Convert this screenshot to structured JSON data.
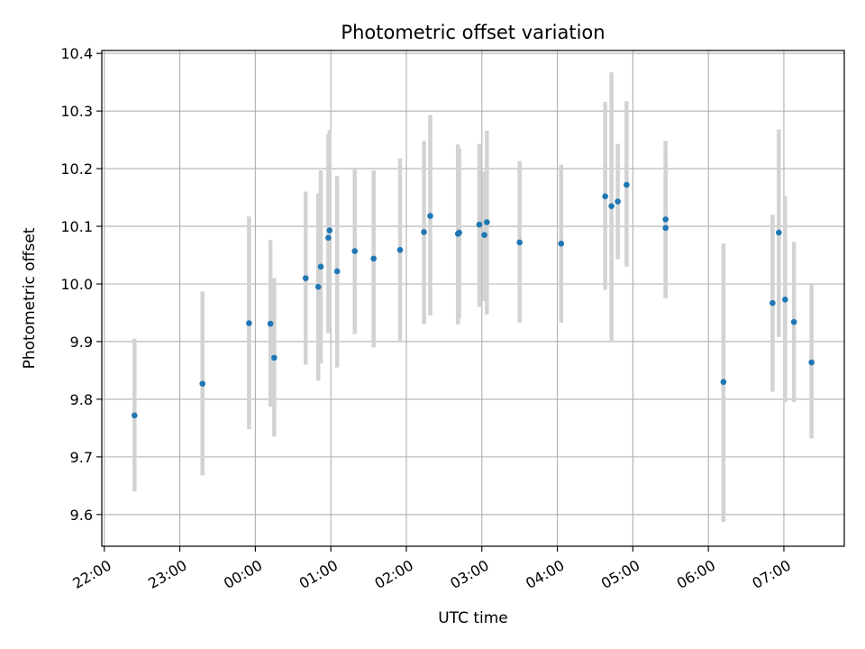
{
  "chart_data": {
    "type": "scatter",
    "title": "Photometric offset variation",
    "xlabel": "UTC time",
    "ylabel": "Photometric offset",
    "x_axis_type": "time",
    "xlim": [
      "21:58",
      "07:48"
    ],
    "ylim": [
      9.545,
      10.405
    ],
    "x_ticks": [
      "22:00",
      "23:00",
      "00:00",
      "01:00",
      "02:00",
      "03:00",
      "04:00",
      "05:00",
      "06:00",
      "07:00"
    ],
    "y_ticks": [
      "9.6",
      "9.7",
      "9.8",
      "9.9",
      "10.0",
      "10.1",
      "10.2",
      "10.3",
      "10.4"
    ],
    "grid": true,
    "marker_color": "#1f77b4",
    "errorbar_color": "#d3d3d3",
    "points": [
      {
        "x": "22:24",
        "y": 9.772,
        "ylow": 9.64,
        "yhigh": 9.905
      },
      {
        "x": "23:18",
        "y": 9.827,
        "ylow": 9.668,
        "yhigh": 9.987
      },
      {
        "x": "23:55",
        "y": 9.932,
        "ylow": 9.748,
        "yhigh": 10.117
      },
      {
        "x": "00:12",
        "y": 9.931,
        "ylow": 9.787,
        "yhigh": 10.076
      },
      {
        "x": "00:15",
        "y": 9.872,
        "ylow": 9.735,
        "yhigh": 10.01
      },
      {
        "x": "00:40",
        "y": 10.01,
        "ylow": 9.86,
        "yhigh": 10.16
      },
      {
        "x": "00:50",
        "y": 9.995,
        "ylow": 9.832,
        "yhigh": 10.157
      },
      {
        "x": "00:52",
        "y": 10.03,
        "ylow": 9.862,
        "yhigh": 10.197
      },
      {
        "x": "00:58",
        "y": 10.08,
        "ylow": 9.915,
        "yhigh": 10.26
      },
      {
        "x": "00:59",
        "y": 10.093,
        "ylow": 9.925,
        "yhigh": 10.267
      },
      {
        "x": "01:05",
        "y": 10.022,
        "ylow": 9.855,
        "yhigh": 10.187
      },
      {
        "x": "01:19",
        "y": 10.057,
        "ylow": 9.913,
        "yhigh": 10.2
      },
      {
        "x": "01:34",
        "y": 10.044,
        "ylow": 9.89,
        "yhigh": 10.197
      },
      {
        "x": "01:55",
        "y": 10.059,
        "ylow": 9.9,
        "yhigh": 10.218
      },
      {
        "x": "02:14",
        "y": 10.09,
        "ylow": 9.93,
        "yhigh": 10.248
      },
      {
        "x": "02:19",
        "y": 10.118,
        "ylow": 9.945,
        "yhigh": 10.293
      },
      {
        "x": "02:41",
        "y": 10.087,
        "ylow": 9.93,
        "yhigh": 10.242
      },
      {
        "x": "02:42",
        "y": 10.089,
        "ylow": 9.94,
        "yhigh": 10.235
      },
      {
        "x": "02:58",
        "y": 10.103,
        "ylow": 9.96,
        "yhigh": 10.243
      },
      {
        "x": "03:02",
        "y": 10.085,
        "ylow": 9.97,
        "yhigh": 10.195
      },
      {
        "x": "03:04",
        "y": 10.107,
        "ylow": 9.947,
        "yhigh": 10.266
      },
      {
        "x": "03:30",
        "y": 10.072,
        "ylow": 9.933,
        "yhigh": 10.213
      },
      {
        "x": "04:03",
        "y": 10.07,
        "ylow": 9.933,
        "yhigh": 10.207
      },
      {
        "x": "04:38",
        "y": 10.152,
        "ylow": 9.99,
        "yhigh": 10.316
      },
      {
        "x": "04:43",
        "y": 10.135,
        "ylow": 9.9,
        "yhigh": 10.367
      },
      {
        "x": "04:48",
        "y": 10.143,
        "ylow": 10.043,
        "yhigh": 10.243
      },
      {
        "x": "04:55",
        "y": 10.172,
        "ylow": 10.03,
        "yhigh": 10.317
      },
      {
        "x": "05:26",
        "y": 10.112,
        "ylow": 9.975,
        "yhigh": 10.248
      },
      {
        "x": "05:26",
        "y": 10.097,
        "ylow": 9.975,
        "yhigh": 10.22
      },
      {
        "x": "06:12",
        "y": 9.83,
        "ylow": 9.587,
        "yhigh": 10.07
      },
      {
        "x": "06:51",
        "y": 9.967,
        "ylow": 9.813,
        "yhigh": 10.12
      },
      {
        "x": "06:56",
        "y": 10.089,
        "ylow": 9.908,
        "yhigh": 10.268
      },
      {
        "x": "07:01",
        "y": 9.973,
        "ylow": 9.795,
        "yhigh": 10.152
      },
      {
        "x": "07:08",
        "y": 9.934,
        "ylow": 9.795,
        "yhigh": 10.073
      },
      {
        "x": "07:22",
        "y": 9.864,
        "ylow": 9.732,
        "yhigh": 10.0
      }
    ]
  }
}
